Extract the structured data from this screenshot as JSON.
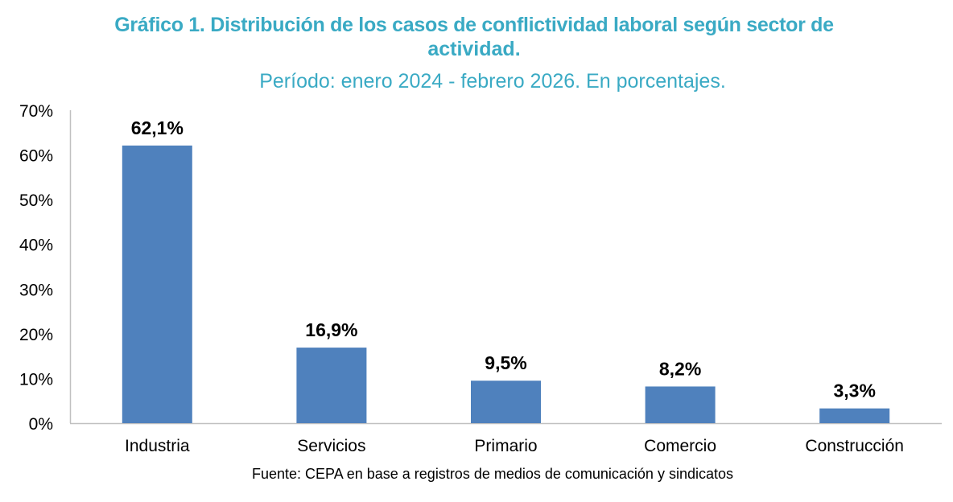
{
  "chart_data": {
    "type": "bar",
    "title_line1": "Gráfico 1.  Distribución de los casos de conflictividad laboral según sector de",
    "title_line2": "actividad.",
    "subtitle": "Período: enero 2024 - febrero 2026. En porcentajes.",
    "categories": [
      "Industria",
      "Servicios",
      "Primario",
      "Comercio",
      "Construcción"
    ],
    "values": [
      62.1,
      16.9,
      9.5,
      8.2,
      3.3
    ],
    "data_labels": [
      "62,1%",
      "16,9%",
      "9,5%",
      "8,2%",
      "3,3%"
    ],
    "y_ticks": [
      0,
      10,
      20,
      30,
      40,
      50,
      60,
      70
    ],
    "y_tick_labels": [
      "0%",
      "10%",
      "20%",
      "30%",
      "40%",
      "50%",
      "60%",
      "70%"
    ],
    "ylim": [
      0,
      70
    ],
    "xlabel": "",
    "ylabel": "",
    "grid": false,
    "legend": "none",
    "bar_color": "#4f81bd",
    "title_color": "#3aaac4",
    "source": "Fuente: CEPA en base a registros de medios de comunicación y sindicatos"
  }
}
